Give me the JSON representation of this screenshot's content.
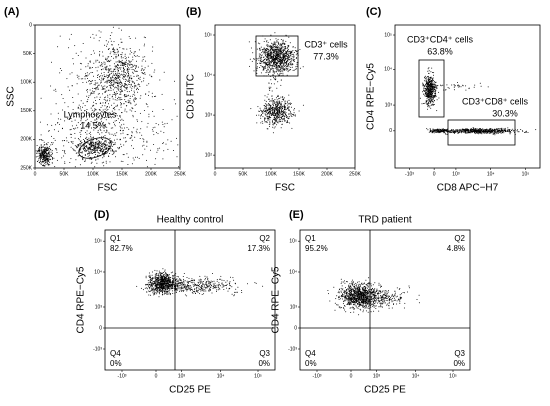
{
  "panels": [
    {
      "label": "(A)",
      "x_axis": "FSC",
      "y_axis": "SSC",
      "xticks": [
        "0",
        "50K",
        "100K",
        "150K",
        "200K",
        "250K"
      ],
      "yticks": [
        "0",
        "50K",
        "100K",
        "150K",
        "200K",
        "250K"
      ],
      "gates": [
        {
          "name": "Lymphocytes",
          "value": "14.5%"
        }
      ]
    },
    {
      "label": "(B)",
      "x_axis": "FSC",
      "y_axis": "CD3 FITC",
      "xticks": [
        "0",
        "50K",
        "100K",
        "150K",
        "200K",
        "250K"
      ],
      "yticks": [
        "10⁵",
        "10⁴",
        "10³",
        "10²"
      ],
      "gates": [
        {
          "name": "CD3⁺ cells",
          "value": "77.3%"
        }
      ]
    },
    {
      "label": "(C)",
      "x_axis": "CD8 APC−H7",
      "y_axis": "CD4 RPE−Cy5",
      "xticks": [
        "-10³",
        "0",
        "10³",
        "10⁴",
        "10⁵"
      ],
      "yticks": [
        "10⁵",
        "10⁴",
        "10³",
        "0"
      ],
      "gates": [
        {
          "name": "CD3⁺CD4⁺ cells",
          "value": "63.8%"
        },
        {
          "name": "CD3⁺CD8⁺ cells",
          "value": "30.3%"
        }
      ]
    },
    {
      "label": "(D)",
      "title": "Healthy control",
      "x_axis": "CD25 PE",
      "y_axis": "CD4 RPE−Cy5",
      "xticks": [
        "-10³",
        "0",
        "10³",
        "10⁴",
        "10⁵"
      ],
      "yticks": [
        "10⁵",
        "10⁴",
        "10³",
        "0",
        "-10³"
      ],
      "quadrants": [
        {
          "name": "Q1",
          "value": "82.7%"
        },
        {
          "name": "Q2",
          "value": "17.3%"
        },
        {
          "name": "Q3",
          "value": "0%"
        },
        {
          "name": "Q4",
          "value": "0%"
        }
      ]
    },
    {
      "label": "(E)",
      "title": "TRD patient",
      "x_axis": "CD25 PE",
      "y_axis": "CD4 RPE−Cy5",
      "xticks": [
        "-10³",
        "0",
        "10³",
        "10⁴",
        "10⁵"
      ],
      "yticks": [
        "10⁵",
        "10⁴",
        "10³",
        "0",
        "-10³"
      ],
      "quadrants": [
        {
          "name": "Q1",
          "value": "95.2%"
        },
        {
          "name": "Q2",
          "value": "4.8%"
        },
        {
          "name": "Q3",
          "value": "0%"
        },
        {
          "name": "Q4",
          "value": "0%"
        }
      ]
    }
  ]
}
